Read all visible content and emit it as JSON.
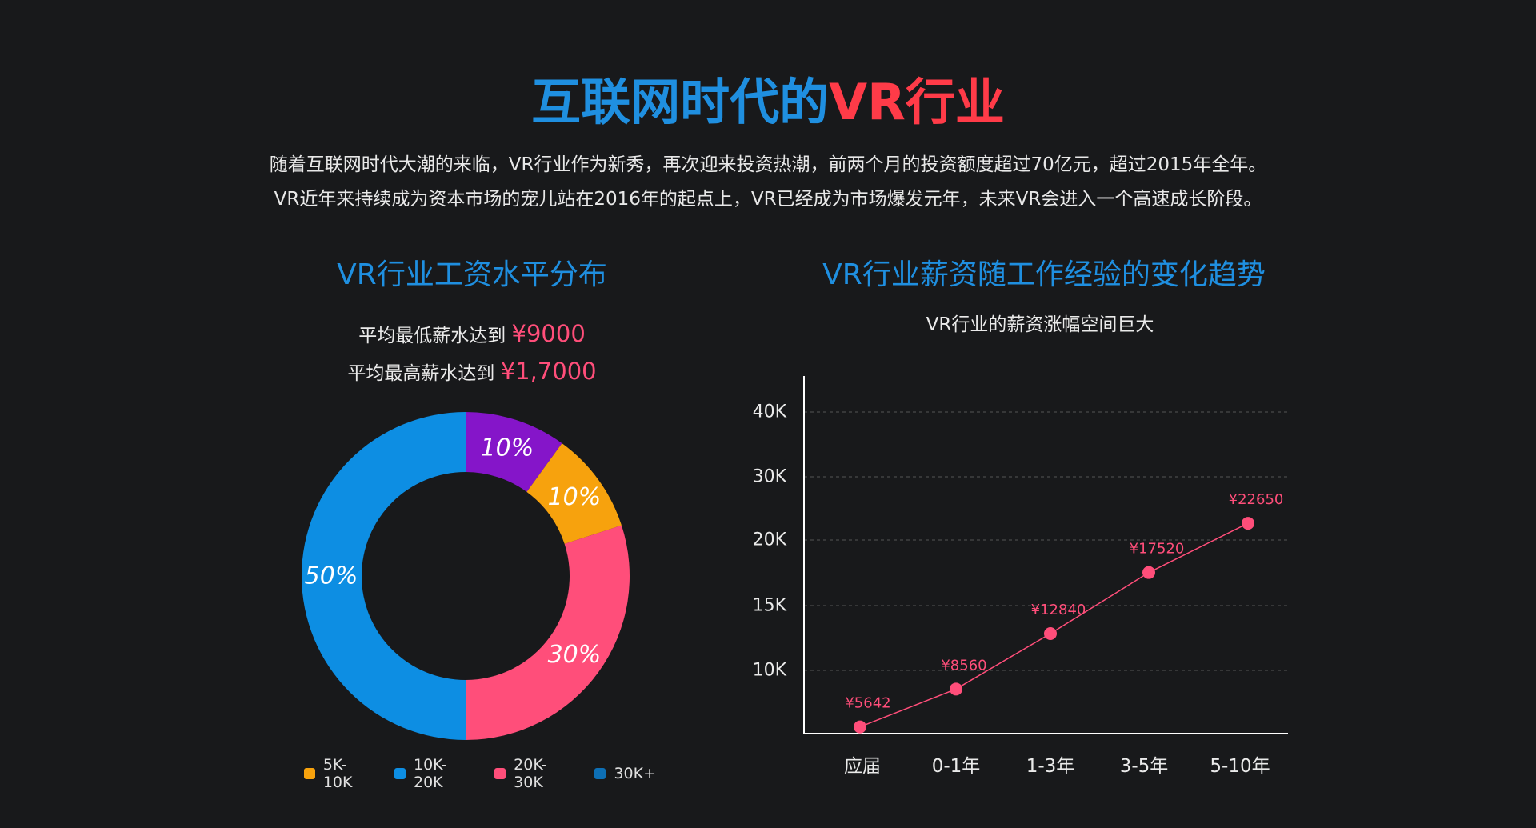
{
  "header": {
    "title_blue": "互联网时代的",
    "title_red": "VR行业",
    "intro_line1": "随着互联网时代大潮的来临，VR行业作为新秀，再次迎来投资热潮，前两个月的投资额度超过70亿元，超过2015年全年。",
    "intro_line2": "VR近年来持续成为资本市场的宠儿站在2016年的起点上，VR已经成为市场爆发元年，未来VR会进入一个高速成长阶段。"
  },
  "left_panel": {
    "title": "VR行业工资水平分布",
    "stat1_label": "平均最低薪水达到 ",
    "stat1_value": "¥9000",
    "stat2_label": "平均最高薪水达到 ",
    "stat2_value": "¥1,7000"
  },
  "right_panel": {
    "title": "VR行业薪资随工作经验的变化趋势",
    "caption": "VR行业的薪资涨幅空间巨大"
  },
  "colors": {
    "blue": "#1f8fe0",
    "red": "#ff3b48",
    "pink": "#ff4e7a",
    "slice_5k_10k": "#f7a20d",
    "slice_10k_20k": "#0d8ee3",
    "slice_20k_30k": "#ff4e7a",
    "slice_30k_plus": "#8515c9",
    "legend_30k_plus": "#0d6fb5"
  },
  "chart_data": [
    {
      "type": "pie",
      "style": "donut",
      "slices": [
        {
          "label": "30K+",
          "value": 10,
          "display": "10%",
          "color": "#8515c9"
        },
        {
          "label": "5K-10K",
          "value": 10,
          "display": "10%",
          "color": "#f7a20d"
        },
        {
          "label": "20K-30K",
          "value": 30,
          "display": "30%",
          "color": "#ff4e7a"
        },
        {
          "label": "10K-20K",
          "value": 50,
          "display": "50%",
          "color": "#0d8ee3"
        }
      ],
      "legend": [
        {
          "label": "5K-10K",
          "color": "#f7a20d"
        },
        {
          "label": "10K-20K",
          "color": "#0d8ee3"
        },
        {
          "label": "20K-30K",
          "color": "#ff4e7a"
        },
        {
          "label": "30K+",
          "color": "#0d6fb5"
        }
      ],
      "legend_position": "bottom"
    },
    {
      "type": "line",
      "categories": [
        "应届",
        "0-1年",
        "1-3年",
        "3-5年",
        "5-10年"
      ],
      "values": [
        5642,
        8560,
        12840,
        17520,
        22650
      ],
      "data_labels": [
        "¥5642",
        "¥8560",
        "¥12840",
        "¥17520",
        "¥22650"
      ],
      "ytick_labels": [
        "10K",
        "15K",
        "20K",
        "30K",
        "40K"
      ],
      "ytick_values": [
        10000,
        15000,
        20000,
        30000,
        40000
      ],
      "grid": "horizontal dashed",
      "color": "#ff4e7a"
    }
  ]
}
